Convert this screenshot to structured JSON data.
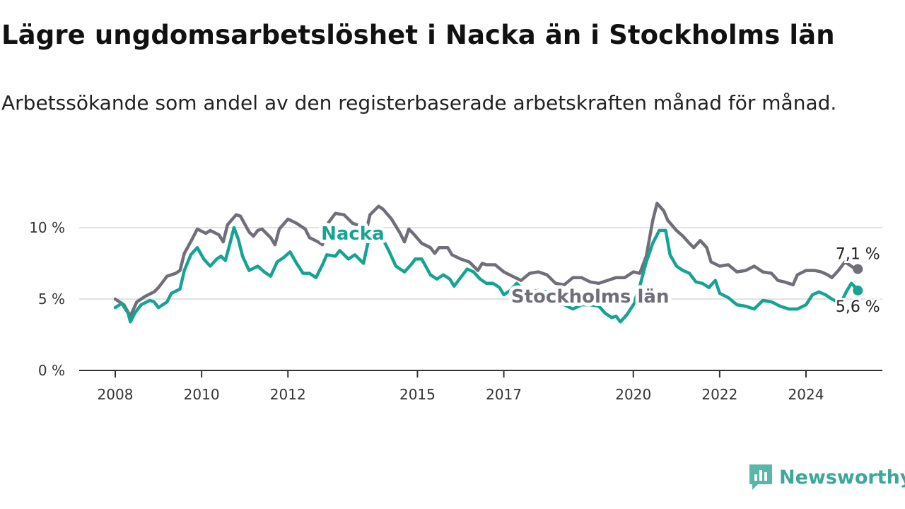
{
  "header": {
    "title": "Lägre ungdomsarbetslöshet i Nacka än i Stockholms län",
    "subtitle": "Arbetssökande som andel av den registerbaserade arbetskraften månad för månad."
  },
  "brand": {
    "name": "Newsworthy",
    "icon": "newsworthy-logo-icon",
    "color": "#3aa89a"
  },
  "chart_data": {
    "type": "line",
    "title": "Lägre ungdomsarbetslöshet i Nacka än i Stockholms län",
    "xlabel": "",
    "ylabel": "",
    "ylim": [
      0,
      12
    ],
    "xlim": [
      2008.0,
      2025.4
    ],
    "grid": "horizontal",
    "y_ticks": [
      {
        "value": 0,
        "label": "0 %"
      },
      {
        "value": 5,
        "label": "5 %"
      },
      {
        "value": 10,
        "label": "10 %"
      }
    ],
    "x_ticks": [
      {
        "value": 2008,
        "label": "2008"
      },
      {
        "value": 2010,
        "label": "2010"
      },
      {
        "value": 2012,
        "label": "2012"
      },
      {
        "value": 2015,
        "label": "2015"
      },
      {
        "value": 2017,
        "label": "2017"
      },
      {
        "value": 2020,
        "label": "2020"
      },
      {
        "value": 2022,
        "label": "2022"
      },
      {
        "value": 2024,
        "label": "2024"
      }
    ],
    "series": [
      {
        "name": "Stockholms län",
        "color": "#706e78",
        "end_label": "7,1 %",
        "points": [
          [
            2008.0,
            5.0
          ],
          [
            2008.2,
            4.6
          ],
          [
            2008.35,
            3.8
          ],
          [
            2008.5,
            4.8
          ],
          [
            2008.7,
            5.2
          ],
          [
            2008.9,
            5.5
          ],
          [
            2009.0,
            5.8
          ],
          [
            2009.2,
            6.6
          ],
          [
            2009.4,
            6.8
          ],
          [
            2009.5,
            7.0
          ],
          [
            2009.6,
            8.2
          ],
          [
            2009.8,
            9.3
          ],
          [
            2009.9,
            9.9
          ],
          [
            2010.1,
            9.6
          ],
          [
            2010.2,
            9.8
          ],
          [
            2010.4,
            9.5
          ],
          [
            2010.5,
            9.0
          ],
          [
            2010.6,
            10.2
          ],
          [
            2010.8,
            10.9
          ],
          [
            2010.9,
            10.8
          ],
          [
            2011.1,
            9.7
          ],
          [
            2011.2,
            9.4
          ],
          [
            2011.3,
            9.8
          ],
          [
            2011.4,
            9.9
          ],
          [
            2011.6,
            9.3
          ],
          [
            2011.7,
            8.8
          ],
          [
            2011.8,
            9.9
          ],
          [
            2012.0,
            10.6
          ],
          [
            2012.2,
            10.3
          ],
          [
            2012.4,
            9.9
          ],
          [
            2012.5,
            9.3
          ],
          [
            2012.7,
            9.0
          ],
          [
            2012.8,
            8.8
          ],
          [
            2012.9,
            10.2
          ],
          [
            2013.1,
            11.0
          ],
          [
            2013.3,
            10.9
          ],
          [
            2013.5,
            10.3
          ],
          [
            2013.7,
            10.1
          ],
          [
            2013.8,
            9.6
          ],
          [
            2013.9,
            10.9
          ],
          [
            2014.1,
            11.5
          ],
          [
            2014.2,
            11.3
          ],
          [
            2014.4,
            10.6
          ],
          [
            2014.6,
            9.6
          ],
          [
            2014.7,
            9.0
          ],
          [
            2014.8,
            9.9
          ],
          [
            2014.9,
            9.6
          ],
          [
            2015.1,
            8.9
          ],
          [
            2015.3,
            8.6
          ],
          [
            2015.4,
            8.2
          ],
          [
            2015.5,
            8.6
          ],
          [
            2015.7,
            8.6
          ],
          [
            2015.8,
            8.1
          ],
          [
            2016.0,
            7.8
          ],
          [
            2016.2,
            7.6
          ],
          [
            2016.4,
            7.0
          ],
          [
            2016.5,
            7.5
          ],
          [
            2016.6,
            7.4
          ],
          [
            2016.8,
            7.4
          ],
          [
            2017.0,
            6.9
          ],
          [
            2017.2,
            6.6
          ],
          [
            2017.4,
            6.3
          ],
          [
            2017.6,
            6.8
          ],
          [
            2017.8,
            6.9
          ],
          [
            2018.0,
            6.7
          ],
          [
            2018.2,
            6.1
          ],
          [
            2018.4,
            6.0
          ],
          [
            2018.6,
            6.5
          ],
          [
            2018.8,
            6.5
          ],
          [
            2019.0,
            6.2
          ],
          [
            2019.2,
            6.1
          ],
          [
            2019.4,
            6.3
          ],
          [
            2019.6,
            6.5
          ],
          [
            2019.8,
            6.5
          ],
          [
            2020.0,
            6.9
          ],
          [
            2020.15,
            6.8
          ],
          [
            2020.3,
            8.0
          ],
          [
            2020.45,
            10.5
          ],
          [
            2020.55,
            11.7
          ],
          [
            2020.7,
            11.2
          ],
          [
            2020.8,
            10.5
          ],
          [
            2021.0,
            9.8
          ],
          [
            2021.15,
            9.4
          ],
          [
            2021.3,
            8.9
          ],
          [
            2021.4,
            8.6
          ],
          [
            2021.55,
            9.1
          ],
          [
            2021.7,
            8.6
          ],
          [
            2021.8,
            7.6
          ],
          [
            2022.0,
            7.3
          ],
          [
            2022.2,
            7.4
          ],
          [
            2022.4,
            6.9
          ],
          [
            2022.6,
            7.0
          ],
          [
            2022.8,
            7.3
          ],
          [
            2023.0,
            6.9
          ],
          [
            2023.2,
            6.8
          ],
          [
            2023.35,
            6.3
          ],
          [
            2023.5,
            6.2
          ],
          [
            2023.7,
            6.0
          ],
          [
            2023.8,
            6.7
          ],
          [
            2024.0,
            7.0
          ],
          [
            2024.2,
            7.0
          ],
          [
            2024.35,
            6.9
          ],
          [
            2024.5,
            6.7
          ],
          [
            2024.6,
            6.5
          ],
          [
            2024.75,
            7.0
          ],
          [
            2024.9,
            7.6
          ],
          [
            2025.0,
            7.4
          ],
          [
            2025.1,
            7.2
          ],
          [
            2025.2,
            7.1
          ]
        ]
      },
      {
        "name": "Nacka",
        "color": "#16a394",
        "end_label": "5,6 %",
        "points": [
          [
            2008.0,
            4.4
          ],
          [
            2008.15,
            4.7
          ],
          [
            2008.3,
            4.0
          ],
          [
            2008.35,
            3.4
          ],
          [
            2008.45,
            4.0
          ],
          [
            2008.6,
            4.6
          ],
          [
            2008.8,
            4.9
          ],
          [
            2008.9,
            4.8
          ],
          [
            2009.0,
            4.4
          ],
          [
            2009.2,
            4.8
          ],
          [
            2009.3,
            5.4
          ],
          [
            2009.5,
            5.7
          ],
          [
            2009.6,
            7.0
          ],
          [
            2009.75,
            8.1
          ],
          [
            2009.9,
            8.6
          ],
          [
            2010.05,
            7.8
          ],
          [
            2010.2,
            7.3
          ],
          [
            2010.35,
            7.8
          ],
          [
            2010.45,
            8.0
          ],
          [
            2010.55,
            7.7
          ],
          [
            2010.65,
            8.8
          ],
          [
            2010.75,
            10.0
          ],
          [
            2010.85,
            9.2
          ],
          [
            2010.95,
            8.0
          ],
          [
            2011.1,
            7.0
          ],
          [
            2011.3,
            7.3
          ],
          [
            2011.45,
            6.9
          ],
          [
            2011.6,
            6.6
          ],
          [
            2011.75,
            7.6
          ],
          [
            2011.9,
            7.9
          ],
          [
            2012.05,
            8.3
          ],
          [
            2012.2,
            7.5
          ],
          [
            2012.35,
            6.8
          ],
          [
            2012.5,
            6.8
          ],
          [
            2012.65,
            6.5
          ],
          [
            2012.8,
            7.4
          ],
          [
            2012.9,
            8.1
          ],
          [
            2013.1,
            8.0
          ],
          [
            2013.2,
            8.4
          ],
          [
            2013.4,
            7.8
          ],
          [
            2013.55,
            8.1
          ],
          [
            2013.75,
            7.5
          ],
          [
            2013.9,
            9.6
          ],
          [
            2014.0,
            9.8
          ],
          [
            2014.2,
            9.2
          ],
          [
            2014.35,
            8.3
          ],
          [
            2014.5,
            7.3
          ],
          [
            2014.7,
            6.9
          ],
          [
            2014.85,
            7.4
          ],
          [
            2014.95,
            7.8
          ],
          [
            2015.1,
            7.8
          ],
          [
            2015.3,
            6.7
          ],
          [
            2015.45,
            6.4
          ],
          [
            2015.6,
            6.7
          ],
          [
            2015.75,
            6.4
          ],
          [
            2015.85,
            5.9
          ],
          [
            2016.0,
            6.5
          ],
          [
            2016.15,
            7.1
          ],
          [
            2016.3,
            6.9
          ],
          [
            2016.45,
            6.4
          ],
          [
            2016.6,
            6.1
          ],
          [
            2016.75,
            6.1
          ],
          [
            2016.9,
            5.8
          ],
          [
            2017.0,
            5.3
          ],
          [
            2017.15,
            5.6
          ],
          [
            2017.3,
            6.1
          ],
          [
            2017.45,
            5.6
          ],
          [
            2017.6,
            5.5
          ],
          [
            2017.8,
            5.6
          ],
          [
            2018.0,
            5.5
          ],
          [
            2018.2,
            4.9
          ],
          [
            2018.4,
            4.6
          ],
          [
            2018.6,
            4.3
          ],
          [
            2018.8,
            4.6
          ],
          [
            2019.0,
            4.6
          ],
          [
            2019.2,
            4.5
          ],
          [
            2019.35,
            4.0
          ],
          [
            2019.5,
            3.7
          ],
          [
            2019.6,
            3.8
          ],
          [
            2019.7,
            3.4
          ],
          [
            2019.85,
            3.9
          ],
          [
            2020.0,
            4.6
          ],
          [
            2020.15,
            5.9
          ],
          [
            2020.3,
            7.6
          ],
          [
            2020.45,
            8.9
          ],
          [
            2020.6,
            9.8
          ],
          [
            2020.75,
            9.8
          ],
          [
            2020.85,
            8.1
          ],
          [
            2021.0,
            7.3
          ],
          [
            2021.15,
            7.0
          ],
          [
            2021.3,
            6.8
          ],
          [
            2021.45,
            6.2
          ],
          [
            2021.6,
            6.1
          ],
          [
            2021.75,
            5.8
          ],
          [
            2021.9,
            6.3
          ],
          [
            2022.0,
            5.4
          ],
          [
            2022.2,
            5.1
          ],
          [
            2022.4,
            4.6
          ],
          [
            2022.6,
            4.5
          ],
          [
            2022.8,
            4.3
          ],
          [
            2023.0,
            4.9
          ],
          [
            2023.2,
            4.8
          ],
          [
            2023.4,
            4.5
          ],
          [
            2023.6,
            4.3
          ],
          [
            2023.8,
            4.3
          ],
          [
            2024.0,
            4.6
          ],
          [
            2024.15,
            5.3
          ],
          [
            2024.3,
            5.5
          ],
          [
            2024.45,
            5.3
          ],
          [
            2024.6,
            5.0
          ],
          [
            2024.8,
            4.7
          ],
          [
            2024.95,
            5.6
          ],
          [
            2025.05,
            6.1
          ],
          [
            2025.15,
            5.8
          ],
          [
            2025.2,
            5.6
          ]
        ]
      }
    ],
    "annotations": [
      {
        "series": "Nacka",
        "text": "Nacka",
        "at": [
          2013.5,
          9.6
        ],
        "color": "#16a394"
      },
      {
        "series": "Stockholms län",
        "text": "Stockholms län",
        "at": [
          2019.0,
          5.2
        ],
        "color": "#706e78"
      }
    ]
  }
}
